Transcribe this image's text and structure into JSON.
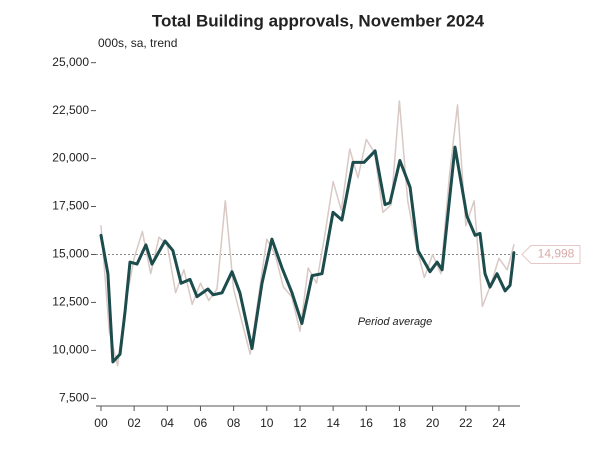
{
  "chart_data": {
    "type": "line",
    "title": "Total Building approvals, November 2024",
    "subtitle": "000s, sa, trend",
    "annotation": "Period average",
    "average": {
      "value": 14998,
      "label": "14,998"
    },
    "xlim": [
      1999.7,
      2025.27
    ],
    "xticks": [
      {
        "value": 2000,
        "label": "00"
      },
      {
        "value": 2002,
        "label": "02"
      },
      {
        "value": 2004,
        "label": "04"
      },
      {
        "value": 2006,
        "label": "06"
      },
      {
        "value": 2008,
        "label": "08"
      },
      {
        "value": 2010,
        "label": "10"
      },
      {
        "value": 2012,
        "label": "12"
      },
      {
        "value": 2014,
        "label": "14"
      },
      {
        "value": 2016,
        "label": "16"
      },
      {
        "value": 2018,
        "label": "18"
      },
      {
        "value": 2020,
        "label": "20"
      },
      {
        "value": 2022,
        "label": "22"
      },
      {
        "value": 2024,
        "label": "24"
      }
    ],
    "ylim": [
      7100,
      25400
    ],
    "yticks": [
      {
        "value": 7500,
        "label": "7,500"
      },
      {
        "value": 10000,
        "label": "10,000"
      },
      {
        "value": 12500,
        "label": "12,500"
      },
      {
        "value": 15000,
        "label": "15,000"
      },
      {
        "value": 17500,
        "label": "17,500"
      },
      {
        "value": 20000,
        "label": "20,000"
      },
      {
        "value": 22500,
        "label": "22,500"
      },
      {
        "value": 25000,
        "label": "25,000"
      }
    ],
    "series": [
      {
        "name": "sa",
        "color": "#d9c9c5",
        "x": [
          2000.0,
          2000.5,
          2001.0,
          2001.5,
          2002.0,
          2002.5,
          2003.0,
          2003.5,
          2004.0,
          2004.5,
          2005.0,
          2005.5,
          2006.0,
          2006.5,
          2007.0,
          2007.5,
          2008.0,
          2008.5,
          2009.0,
          2009.5,
          2010.0,
          2010.5,
          2011.0,
          2011.5,
          2012.0,
          2012.5,
          2013.0,
          2013.5,
          2014.0,
          2014.5,
          2015.0,
          2015.5,
          2016.0,
          2016.5,
          2017.0,
          2017.5,
          2018.0,
          2018.5,
          2019.0,
          2019.5,
          2020.0,
          2020.5,
          2021.0,
          2021.5,
          2022.0,
          2022.5,
          2023.0,
          2023.5,
          2024.0,
          2024.5,
          2024.9
        ],
        "values": [
          16500,
          11000,
          9200,
          12500,
          14800,
          16200,
          14000,
          15900,
          15500,
          13000,
          14200,
          12400,
          13500,
          12600,
          13200,
          17800,
          13200,
          11500,
          9800,
          12800,
          15800,
          15000,
          13300,
          12800,
          11000,
          14300,
          13500,
          16000,
          18800,
          17300,
          20500,
          19000,
          21000,
          20300,
          17200,
          17600,
          23000,
          17800,
          15500,
          13800,
          15000,
          14000,
          19000,
          22800,
          16500,
          17800,
          12300,
          13400,
          14800,
          14200,
          15500
        ]
      },
      {
        "name": "trend",
        "color": "#1d4c4d",
        "x": [
          2000.0,
          2000.42,
          2000.72,
          2001.15,
          2001.45,
          2001.75,
          2002.17,
          2002.71,
          2003.08,
          2003.86,
          2004.34,
          2004.83,
          2005.37,
          2005.79,
          2006.45,
          2006.76,
          2007.3,
          2007.9,
          2008.38,
          2009.11,
          2009.71,
          2010.31,
          2010.92,
          2011.52,
          2012.12,
          2012.73,
          2013.33,
          2013.99,
          2014.53,
          2015.2,
          2015.86,
          2016.53,
          2017.13,
          2017.43,
          2018.03,
          2018.64,
          2019.12,
          2019.84,
          2020.27,
          2020.57,
          2021.35,
          2022.07,
          2022.56,
          2022.86,
          2023.16,
          2023.46,
          2023.88,
          2024.37,
          2024.67,
          2024.9
        ],
        "values": [
          16000,
          14000,
          9400,
          9800,
          12000,
          14600,
          14500,
          15500,
          14500,
          15700,
          15200,
          13500,
          13700,
          12800,
          13200,
          12900,
          13000,
          14100,
          13000,
          10100,
          13500,
          15800,
          14300,
          13000,
          11400,
          13900,
          14000,
          17200,
          16800,
          19800,
          19800,
          20400,
          17600,
          17700,
          19900,
          18500,
          15200,
          14100,
          14600,
          14200,
          20600,
          17000,
          16000,
          16100,
          14000,
          13300,
          14000,
          13100,
          13400,
          15100
        ]
      }
    ]
  }
}
